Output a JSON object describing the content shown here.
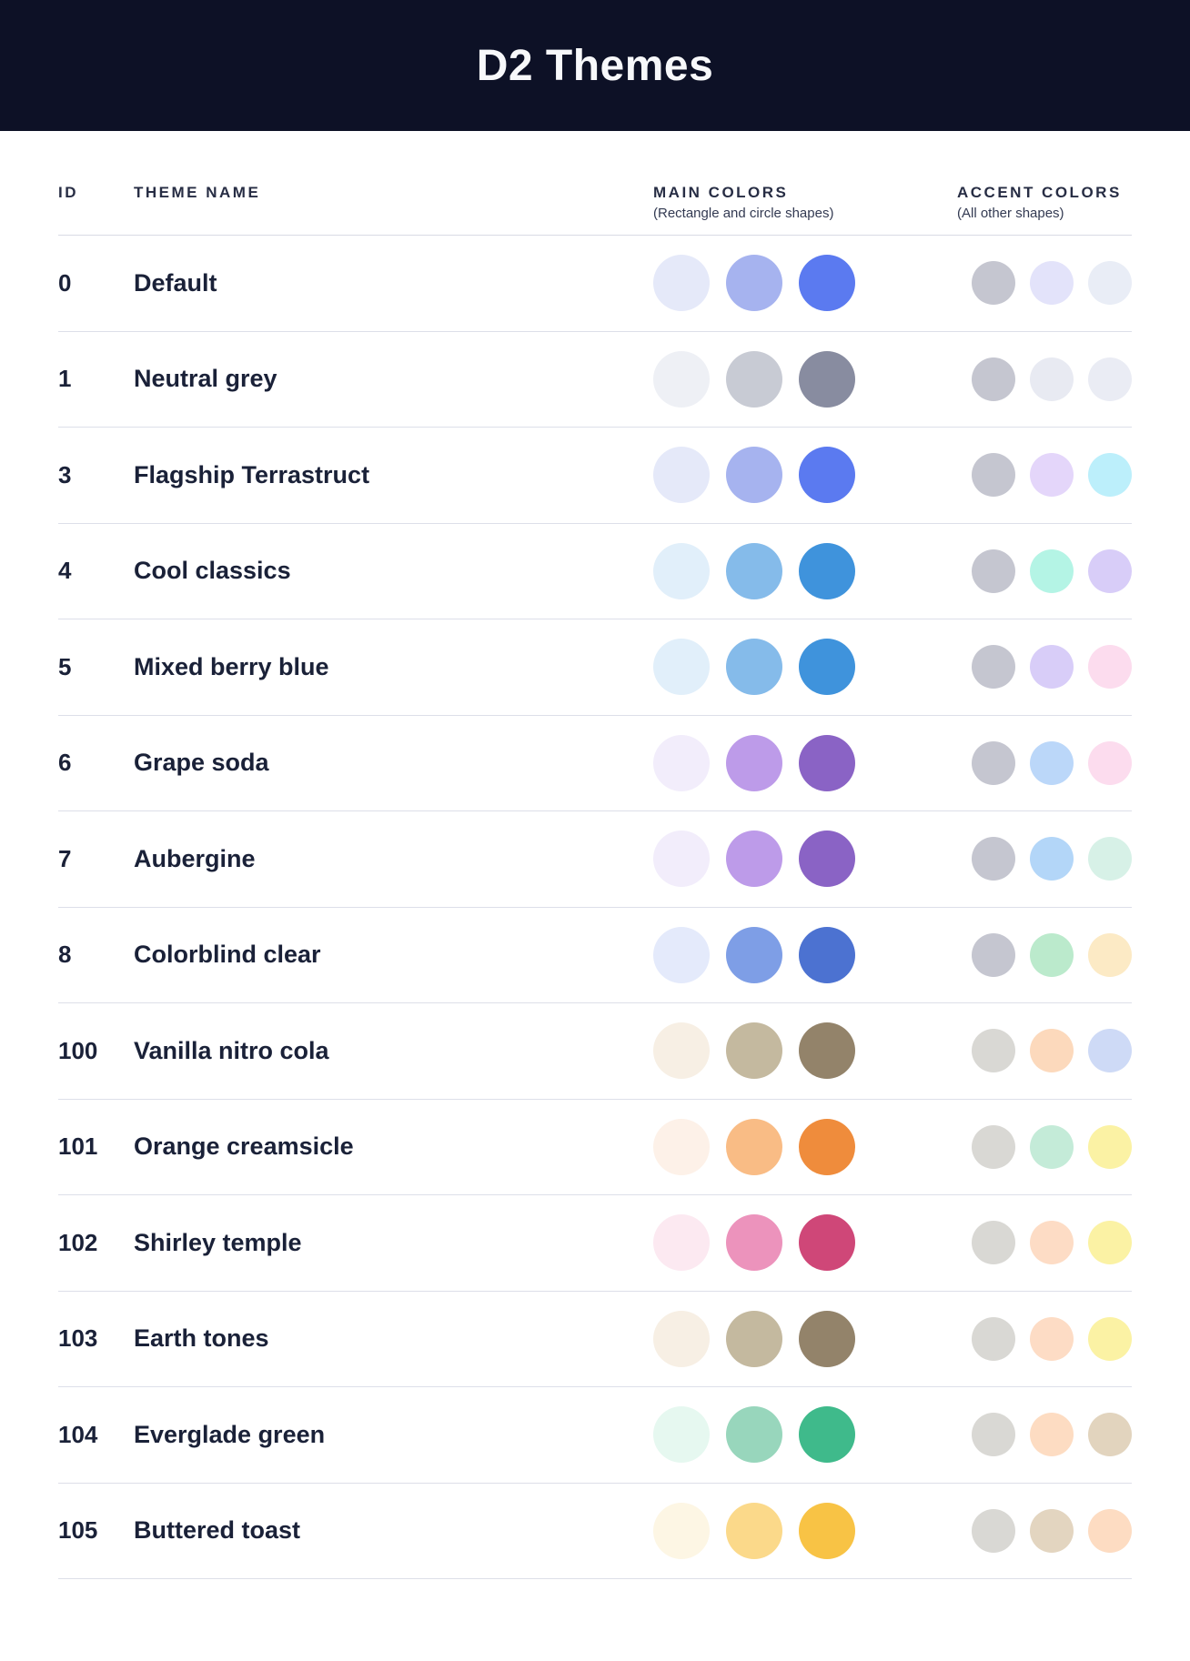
{
  "header": {
    "title": "D2 Themes",
    "background_color": "#0D1126",
    "text_color": "#F7F8FA"
  },
  "table": {
    "columns": {
      "id_label": "ID",
      "theme_name_label": "THEME NAME",
      "main_colors_label": "MAIN COLORS",
      "main_colors_subtitle": "(Rectangle and circle shapes)",
      "accent_colors_label": "ACCENT COLORS",
      "accent_colors_subtitle": "(All other shapes)"
    },
    "rows": [
      {
        "id": "0",
        "name": "Default",
        "main": [
          "#E5E9F9",
          "#A6B3EF",
          "#5B7AF0"
        ],
        "accent": [
          "#C5C6D0",
          "#E3E3FA",
          "#E9EDF6"
        ]
      },
      {
        "id": "1",
        "name": "Neutral grey",
        "main": [
          "#EEF0F5",
          "#C8CBD4",
          "#888CA0"
        ],
        "accent": [
          "#C5C6D0",
          "#E8EAF2",
          "#EAECF4"
        ]
      },
      {
        "id": "3",
        "name": "Flagship Terrastruct",
        "main": [
          "#E5E9F9",
          "#A6B3EF",
          "#5B7AF0"
        ],
        "accent": [
          "#C5C6D0",
          "#E4D6FA",
          "#BCEFFB"
        ]
      },
      {
        "id": "4",
        "name": "Cool classics",
        "main": [
          "#E1EFFA",
          "#85BBEA",
          "#3F93DC"
        ],
        "accent": [
          "#C5C6D0",
          "#B4F4E5",
          "#D8CDF8"
        ]
      },
      {
        "id": "5",
        "name": "Mixed berry blue",
        "main": [
          "#E1EFFA",
          "#85BBEA",
          "#3F93DC"
        ],
        "accent": [
          "#C5C6D0",
          "#D8CDF8",
          "#FCDCEE"
        ]
      },
      {
        "id": "6",
        "name": "Grape soda",
        "main": [
          "#F2EDFB",
          "#BD9BE9",
          "#8A63C5"
        ],
        "accent": [
          "#C5C6D0",
          "#BBD7F9",
          "#FCDCEE"
        ]
      },
      {
        "id": "7",
        "name": "Aubergine",
        "main": [
          "#F2EDFB",
          "#BD9BE9",
          "#8A63C5"
        ],
        "accent": [
          "#C5C6D0",
          "#B3D6F8",
          "#D7F1E7"
        ]
      },
      {
        "id": "8",
        "name": "Colorblind clear",
        "main": [
          "#E4EAFB",
          "#7E9EE6",
          "#4C72D1"
        ],
        "accent": [
          "#C5C6D0",
          "#BBEACC",
          "#FCEAC5"
        ]
      },
      {
        "id": "100",
        "name": "Vanilla nitro cola",
        "main": [
          "#F7EFE4",
          "#C4B99F",
          "#93836A"
        ],
        "accent": [
          "#D9D8D4",
          "#FCD9BC",
          "#CEDAF6"
        ]
      },
      {
        "id": "101",
        "name": "Orange creamsicle",
        "main": [
          "#FDF1E8",
          "#F9BC85",
          "#EF8C3C"
        ],
        "accent": [
          "#D9D8D4",
          "#C4EBD8",
          "#FBF2A4"
        ]
      },
      {
        "id": "102",
        "name": "Shirley temple",
        "main": [
          "#FCE9F1",
          "#EC93BC",
          "#CF4778"
        ],
        "accent": [
          "#D9D8D4",
          "#FDDCC5",
          "#FBF2A4"
        ]
      },
      {
        "id": "103",
        "name": "Earth tones",
        "main": [
          "#F7EFE4",
          "#C4B99F",
          "#93836A"
        ],
        "accent": [
          "#D9D8D4",
          "#FDDCC5",
          "#FBF2A4"
        ]
      },
      {
        "id": "104",
        "name": "Everglade green",
        "main": [
          "#E6F8F0",
          "#98D6BC",
          "#3FBA8B"
        ],
        "accent": [
          "#D9D8D4",
          "#FDDCC2",
          "#E2D4BE"
        ]
      },
      {
        "id": "105",
        "name": "Buttered toast",
        "main": [
          "#FDF6E4",
          "#FBD98A",
          "#F8C345"
        ],
        "accent": [
          "#D9D8D4",
          "#E3D5C0",
          "#FDDCC2"
        ]
      }
    ]
  }
}
